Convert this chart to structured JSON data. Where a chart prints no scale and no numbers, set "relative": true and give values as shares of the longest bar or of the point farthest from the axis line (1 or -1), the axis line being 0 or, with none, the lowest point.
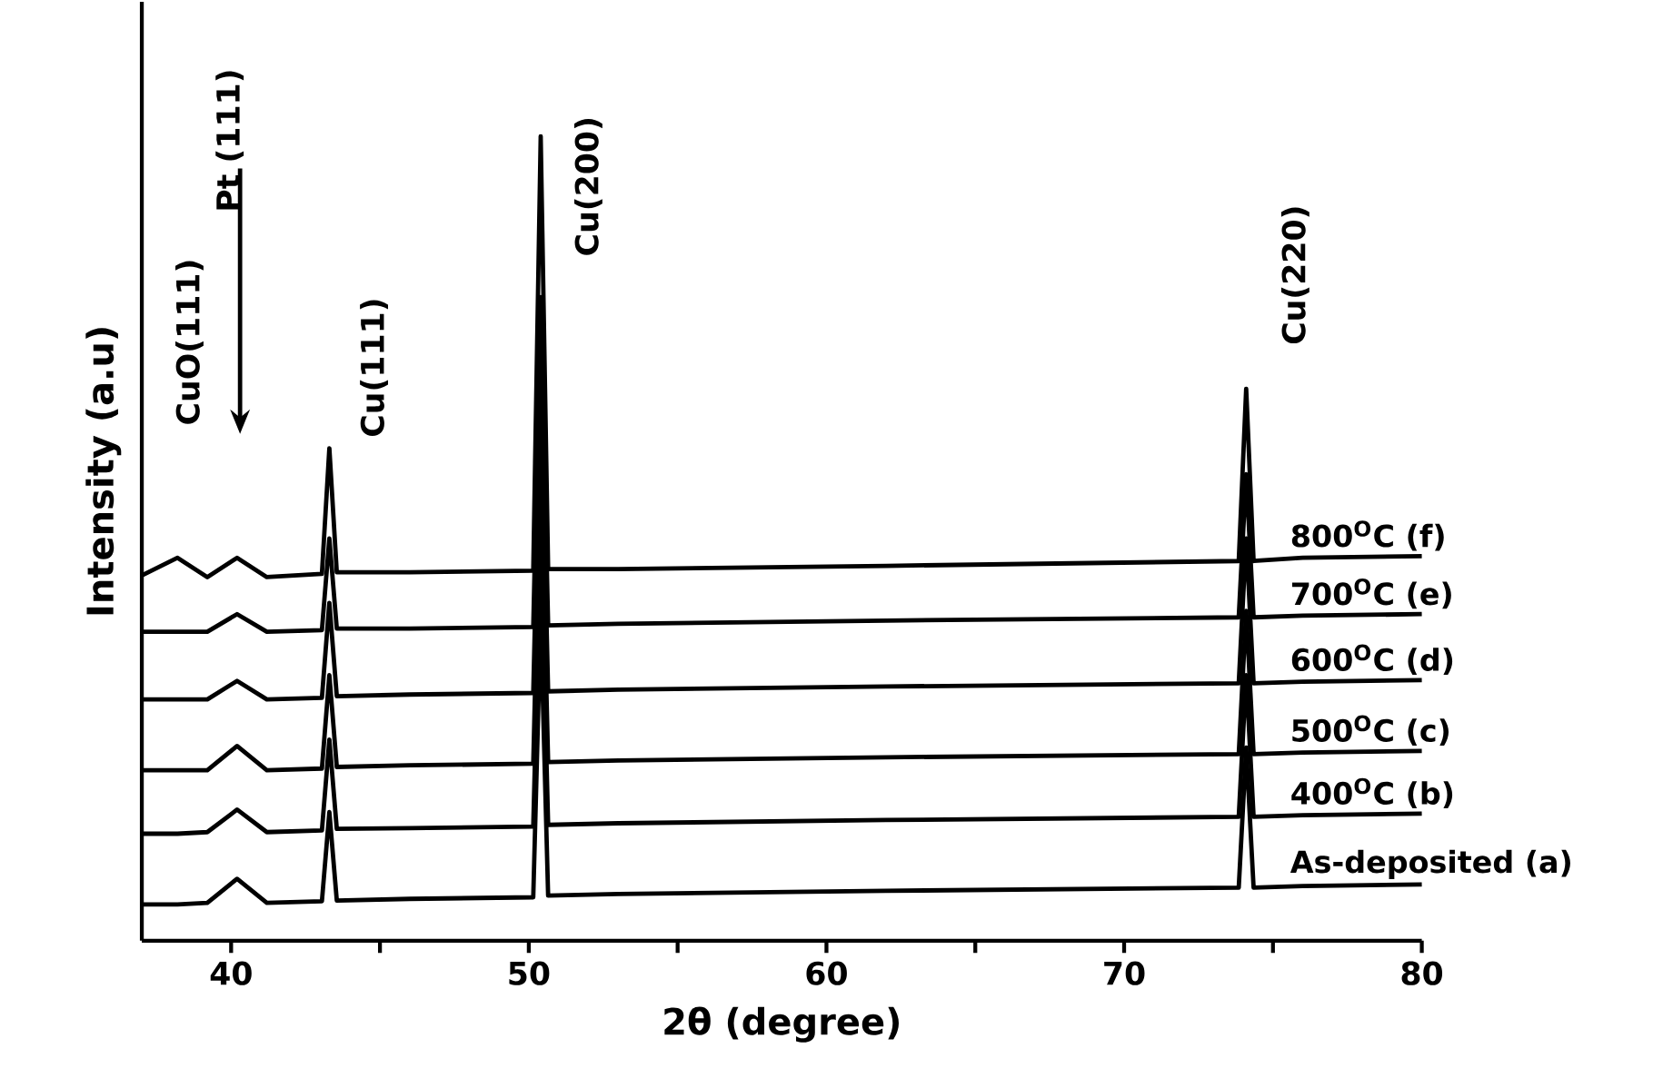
{
  "chart_data": {
    "type": "line",
    "relative": true,
    "xlabel": "2θ (degree)",
    "ylabel": "Intensity (a.u)",
    "x": [
      37,
      38.2,
      39.2,
      40.2,
      41.2,
      43.05,
      43.3,
      43.55,
      46,
      50.15,
      50.4,
      50.65,
      53,
      62,
      73.85,
      74.1,
      74.35,
      76,
      80
    ],
    "xlim": [
      37,
      80
    ],
    "xticks": [
      40,
      {
        "value": 45,
        "label": null
      },
      50,
      {
        "value": 55,
        "label": null
      },
      60,
      {
        "value": 65,
        "label": null
      },
      70,
      {
        "value": 75,
        "label": null
      },
      80
    ],
    "series": [
      {
        "name": "As-deposited (a)",
        "color": "#000000",
        "values": [
          0.045,
          0.045,
          0.047,
          0.077,
          0.047,
          0.049,
          0.16,
          0.05,
          0.052,
          0.054,
          0.4,
          0.056,
          0.058,
          0.062,
          0.066,
          0.24,
          0.066,
          0.068,
          0.07
        ]
      },
      {
        "name": "400$^{O}$C  (b)",
        "color": "#000000",
        "values": [
          0.133,
          0.133,
          0.135,
          0.163,
          0.135,
          0.137,
          0.25,
          0.139,
          0.14,
          0.142,
          0.5,
          0.144,
          0.146,
          0.15,
          0.154,
          0.33,
          0.154,
          0.156,
          0.158
        ]
      },
      {
        "name": "500$^{O}$C  (c)",
        "color": "#000000",
        "values": [
          0.212,
          0.212,
          0.212,
          0.242,
          0.212,
          0.214,
          0.33,
          0.216,
          0.218,
          0.22,
          0.6,
          0.222,
          0.224,
          0.228,
          0.232,
          0.41,
          0.232,
          0.234,
          0.236
        ]
      },
      {
        "name": "600$^{O}$C  (d)",
        "color": "#000000",
        "values": [
          0.3,
          0.3,
          0.3,
          0.323,
          0.3,
          0.302,
          0.42,
          0.304,
          0.306,
          0.308,
          0.7,
          0.31,
          0.312,
          0.316,
          0.32,
          0.5,
          0.32,
          0.322,
          0.324
        ]
      },
      {
        "name": "700$^{O}$C  (e)",
        "color": "#000000",
        "values": [
          0.384,
          0.384,
          0.384,
          0.406,
          0.384,
          0.386,
          0.5,
          0.388,
          0.388,
          0.39,
          0.8,
          0.392,
          0.394,
          0.398,
          0.402,
          0.58,
          0.402,
          0.404,
          0.406
        ]
      },
      {
        "name": "800$^{O}$C  (f)",
        "color": "#000000",
        "values": [
          0.454,
          0.476,
          0.452,
          0.476,
          0.452,
          0.456,
          0.612,
          0.458,
          0.458,
          0.46,
          1.0,
          0.462,
          0.462,
          0.466,
          0.472,
          0.686,
          0.472,
          0.476,
          0.478
        ]
      }
    ],
    "annotations": [
      "CuO(111)",
      "Pt (111)",
      "Cu(111)",
      "Cu(200)",
      "Cu(220)"
    ],
    "legend": false,
    "grid": false,
    "marker": "none",
    "line_style": "solid"
  }
}
